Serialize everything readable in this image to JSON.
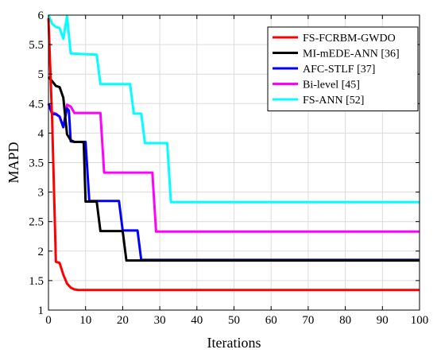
{
  "chart_data": {
    "type": "line",
    "title": "",
    "xlabel": "Iterations",
    "ylabel": "MAPD",
    "xlim": [
      0,
      100
    ],
    "ylim": [
      1,
      6
    ],
    "xticks": [
      0,
      10,
      20,
      30,
      40,
      50,
      60,
      70,
      80,
      90,
      100
    ],
    "yticks": [
      1,
      1.5,
      2,
      2.5,
      3,
      3.5,
      4,
      4.5,
      5,
      5.5,
      6
    ],
    "xtick_labels": [
      "0",
      "10",
      "20",
      "30",
      "40",
      "50",
      "60",
      "70",
      "80",
      "90",
      "100"
    ],
    "ytick_labels": [
      "1",
      "1.5",
      "2",
      "2.5",
      "3",
      "3.5",
      "4",
      "4.5",
      "5",
      "5.5",
      "6"
    ],
    "grid": true,
    "legend_position": "top-right",
    "series": [
      {
        "name": "FS-FCRBM-GWDO",
        "color": "#ff0000",
        "x": [
          0,
          1,
          2,
          3,
          4,
          5,
          6,
          7,
          8,
          10,
          100
        ],
        "y": [
          5.95,
          4.2,
          1.82,
          1.8,
          1.6,
          1.45,
          1.38,
          1.35,
          1.34,
          1.34,
          1.34
        ]
      },
      {
        "name": "MI-mEDE-ANN [36]",
        "color": "#000000",
        "x": [
          0,
          1,
          2,
          3,
          4,
          5,
          6,
          7,
          9,
          9.5,
          10,
          12,
          13,
          14,
          15,
          19,
          20,
          21,
          24,
          100
        ],
        "y": [
          4.95,
          4.88,
          4.8,
          4.78,
          4.6,
          3.98,
          3.88,
          3.85,
          3.85,
          3.84,
          2.84,
          2.84,
          2.84,
          2.34,
          2.34,
          2.34,
          2.34,
          1.84,
          1.84,
          1.84
        ]
      },
      {
        "name": "AFC-STLF [37]",
        "color": "#0000ff",
        "x": [
          0,
          1,
          2,
          3,
          4,
          5,
          5.5,
          6,
          7,
          10,
          11,
          19,
          20,
          24,
          25,
          100
        ],
        "y": [
          4.5,
          4.32,
          4.32,
          4.28,
          4.1,
          4.42,
          4.38,
          3.86,
          3.85,
          3.85,
          2.85,
          2.85,
          2.35,
          2.35,
          1.85,
          1.85
        ]
      },
      {
        "name": "Bi-level [45]",
        "color": "#ff00ff",
        "x": [
          0,
          1,
          2,
          3,
          4,
          5,
          6,
          7,
          14,
          15,
          28,
          29,
          100
        ],
        "y": [
          4.5,
          4.35,
          4.33,
          4.28,
          4.1,
          4.48,
          4.45,
          4.34,
          4.34,
          3.33,
          3.33,
          2.33,
          2.33
        ]
      },
      {
        "name": "FS-ANN [52]",
        "color": "#00ffff",
        "x": [
          0,
          1,
          2,
          3,
          4,
          5,
          6,
          13,
          14,
          22,
          23,
          25,
          26,
          32,
          33,
          100
        ],
        "y": [
          6.0,
          5.85,
          5.8,
          5.78,
          5.6,
          5.98,
          5.35,
          5.33,
          4.83,
          4.83,
          4.33,
          4.33,
          3.83,
          3.83,
          2.83,
          2.83
        ]
      }
    ]
  }
}
